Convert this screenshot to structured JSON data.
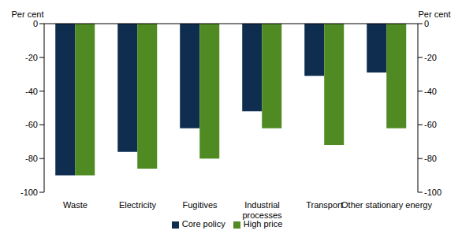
{
  "chart_data": {
    "type": "bar",
    "y_label": "Per cent",
    "y2_label": "Per cent",
    "categories": [
      "Waste",
      "Electricity",
      "Fugitives",
      "Industrial processes",
      "Transport",
      "Other stationary energy"
    ],
    "series": [
      {
        "name": "Core policy",
        "color": "#0f2d4f",
        "values": [
          -90,
          -76,
          -62,
          -52,
          -31,
          -29
        ]
      },
      {
        "name": "High price",
        "color": "#4f8a22",
        "values": [
          -90,
          -86,
          -80,
          -62,
          -72,
          -62
        ]
      }
    ],
    "ylim": [
      -100,
      0
    ],
    "yticks": [
      -100,
      -80,
      -60,
      -40,
      -20,
      0
    ],
    "y2lim": [
      -100,
      0
    ],
    "y2ticks": [
      -100,
      -80,
      -60,
      -40,
      -20,
      0
    ],
    "grid": false,
    "legend": "bottom"
  }
}
